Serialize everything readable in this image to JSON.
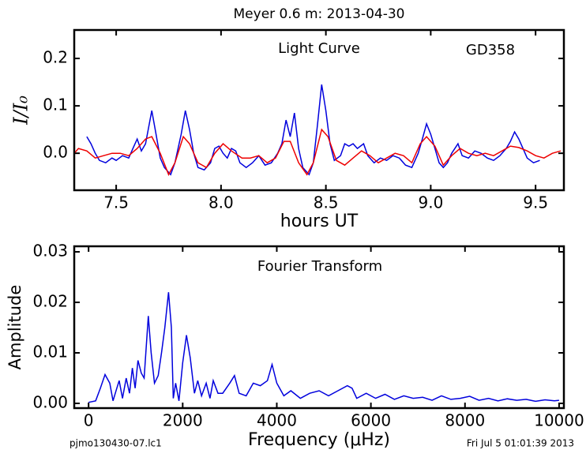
{
  "chart_data": [
    {
      "type": "line",
      "title": "Meyer 0.6 m:  2013-04-30",
      "xlabel": "hours UT",
      "ylabel": "I/I₀",
      "annotations": [
        "Light Curve",
        "GD358"
      ],
      "xlim": [
        7.3,
        9.635
      ],
      "ylim": [
        -0.078,
        0.26
      ],
      "xticks": [
        7.5,
        {
          "value": 8,
          "label": "8.0"
        },
        8.5,
        {
          "value": 9,
          "label": "9.0"
        },
        9.5
      ],
      "yticks": [
        {
          "value": 0,
          "label": "0.0"
        },
        0.1,
        0.2
      ],
      "series": [
        {
          "color": "#0000dd",
          "x": [
            7.36,
            7.38,
            7.4,
            7.42,
            7.45,
            7.48,
            7.5,
            7.53,
            7.56,
            7.58,
            7.6,
            7.62,
            7.64,
            7.67,
            7.69,
            7.71,
            7.73,
            7.76,
            7.78,
            7.81,
            7.83,
            7.85,
            7.87,
            7.89,
            7.92,
            7.95,
            7.97,
            7.99,
            8.01,
            8.03,
            8.05,
            8.07,
            8.09,
            8.12,
            8.15,
            8.18,
            8.21,
            8.24,
            8.27,
            8.29,
            8.31,
            8.33,
            8.35,
            8.37,
            8.39,
            8.42,
            8.44,
            8.46,
            8.48,
            8.5,
            8.52,
            8.54,
            8.57,
            8.59,
            8.61,
            8.63,
            8.65,
            8.68,
            8.7,
            8.73,
            8.76,
            8.79,
            8.82,
            8.85,
            8.88,
            8.91,
            8.94,
            8.96,
            8.98,
            9.0,
            9.02,
            9.04,
            9.06,
            9.08,
            9.1,
            9.13,
            9.15,
            9.18,
            9.21,
            9.24,
            9.27,
            9.3,
            9.33,
            9.36,
            9.38,
            9.4,
            9.42,
            9.44,
            9.46,
            9.49,
            9.52
          ],
          "values": [
            0.035,
            0.02,
            0.0,
            -0.015,
            -0.02,
            -0.01,
            -0.015,
            -0.005,
            -0.01,
            0.01,
            0.03,
            0.005,
            0.02,
            0.09,
            0.04,
            -0.01,
            -0.03,
            -0.045,
            -0.02,
            0.04,
            0.09,
            0.05,
            0.0,
            -0.03,
            -0.035,
            -0.02,
            0.01,
            0.015,
            0.0,
            -0.01,
            0.01,
            0.005,
            -0.02,
            -0.03,
            -0.02,
            -0.005,
            -0.025,
            -0.02,
            0.0,
            0.02,
            0.07,
            0.035,
            0.085,
            0.01,
            -0.03,
            -0.045,
            -0.02,
            0.06,
            0.145,
            0.09,
            0.02,
            -0.015,
            -0.005,
            0.02,
            0.015,
            0.02,
            0.01,
            0.02,
            -0.005,
            -0.02,
            -0.01,
            -0.015,
            -0.005,
            -0.01,
            -0.025,
            -0.03,
            0.0,
            0.03,
            0.062,
            0.04,
            0.01,
            -0.02,
            -0.03,
            -0.02,
            0.0,
            0.02,
            -0.005,
            -0.01,
            0.005,
            0.0,
            -0.01,
            -0.015,
            -0.005,
            0.01,
            0.025,
            0.045,
            0.03,
            0.01,
            -0.01,
            -0.02,
            -0.015
          ]
        },
        {
          "color": "#ee0000",
          "x": [
            7.3,
            7.32,
            7.36,
            7.4,
            7.44,
            7.48,
            7.52,
            7.56,
            7.6,
            7.64,
            7.67,
            7.71,
            7.75,
            7.78,
            7.82,
            7.85,
            7.89,
            7.93,
            7.97,
            8.01,
            8.05,
            8.1,
            8.14,
            8.18,
            8.22,
            8.26,
            8.3,
            8.33,
            8.37,
            8.41,
            8.44,
            8.48,
            8.51,
            8.55,
            8.59,
            8.63,
            8.67,
            8.71,
            8.75,
            8.79,
            8.83,
            8.87,
            8.91,
            8.95,
            8.98,
            9.02,
            9.06,
            9.1,
            9.14,
            9.18,
            9.22,
            9.26,
            9.3,
            9.34,
            9.38,
            9.42,
            9.46,
            9.5,
            9.54,
            9.58,
            9.62
          ],
          "values": [
            0.0,
            0.01,
            0.005,
            -0.01,
            -0.005,
            0.0,
            0.0,
            -0.005,
            0.01,
            0.03,
            0.035,
            0.0,
            -0.045,
            -0.02,
            0.035,
            0.02,
            -0.02,
            -0.03,
            0.0,
            0.02,
            0.005,
            -0.01,
            -0.01,
            -0.005,
            -0.02,
            -0.01,
            0.025,
            0.025,
            -0.02,
            -0.045,
            -0.02,
            0.05,
            0.035,
            -0.015,
            -0.025,
            -0.01,
            0.005,
            -0.005,
            -0.02,
            -0.01,
            0.0,
            -0.005,
            -0.02,
            0.02,
            0.035,
            0.015,
            -0.025,
            -0.005,
            0.01,
            0.0,
            -0.005,
            0.0,
            -0.005,
            0.005,
            0.015,
            0.012,
            0.005,
            -0.005,
            -0.01,
            0.0,
            0.005
          ]
        }
      ]
    },
    {
      "type": "line",
      "xlabel": "Frequency (μHz)",
      "ylabel": "Amplitude",
      "annotations": [
        "Fourier Transform"
      ],
      "xlim": [
        -305,
        10102
      ],
      "ylim": [
        -0.00094,
        0.0311
      ],
      "xticks": [
        0,
        2000,
        4000,
        6000,
        8000,
        10000
      ],
      "yticks": [
        {
          "value": 0,
          "label": "0.00"
        },
        0.01,
        0.02,
        0.03
      ],
      "series": [
        {
          "color": "#0000dd",
          "x": [
            0,
            150,
            250,
            350,
            450,
            520,
            600,
            650,
            720,
            800,
            870,
            930,
            990,
            1050,
            1120,
            1180,
            1270,
            1330,
            1400,
            1480,
            1550,
            1620,
            1700,
            1760,
            1800,
            1850,
            1920,
            2000,
            2080,
            2160,
            2250,
            2320,
            2400,
            2500,
            2580,
            2650,
            2750,
            2850,
            3000,
            3100,
            3200,
            3350,
            3500,
            3650,
            3800,
            3900,
            4000,
            4150,
            4300,
            4500,
            4700,
            4900,
            5100,
            5300,
            5500,
            5600,
            5700,
            5900,
            6100,
            6300,
            6500,
            6700,
            6900,
            7100,
            7300,
            7500,
            7700,
            7900,
            8100,
            8300,
            8500,
            8700,
            8900,
            9100,
            9300,
            9500,
            9700,
            9900,
            10000
          ],
          "values": [
            0.0002,
            0.0005,
            0.003,
            0.0057,
            0.004,
            0.0005,
            0.003,
            0.0045,
            0.001,
            0.005,
            0.002,
            0.007,
            0.003,
            0.0085,
            0.006,
            0.005,
            0.0173,
            0.01,
            0.004,
            0.0055,
            0.01,
            0.015,
            0.022,
            0.015,
            0.001,
            0.004,
            0.0005,
            0.008,
            0.0135,
            0.009,
            0.002,
            0.0045,
            0.0015,
            0.004,
            0.001,
            0.0045,
            0.002,
            0.002,
            0.004,
            0.0055,
            0.002,
            0.0015,
            0.004,
            0.0035,
            0.0045,
            0.0077,
            0.004,
            0.0015,
            0.0025,
            0.001,
            0.002,
            0.0025,
            0.0015,
            0.0025,
            0.0035,
            0.003,
            0.001,
            0.002,
            0.001,
            0.0018,
            0.0008,
            0.0015,
            0.001,
            0.0012,
            0.0006,
            0.0015,
            0.0008,
            0.001,
            0.0014,
            0.0006,
            0.001,
            0.0005,
            0.0009,
            0.0006,
            0.0008,
            0.0004,
            0.0007,
            0.0005,
            0.0006
          ]
        }
      ]
    }
  ],
  "footer": {
    "left": "pjmo130430-07.lc1",
    "right": "Fri Jul  5 01:01:39 2013"
  }
}
